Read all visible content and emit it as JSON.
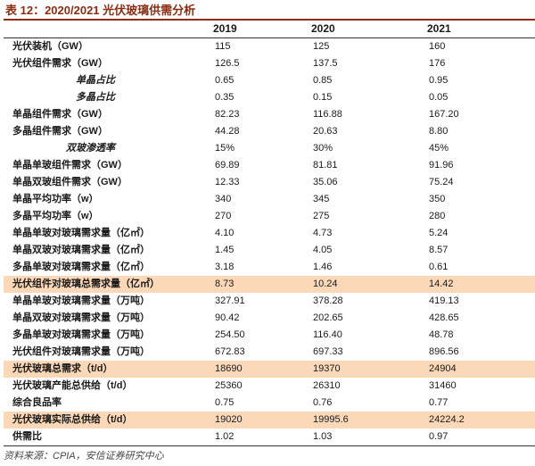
{
  "title": "表 12：2020/2021 光伏玻璃供需分析",
  "columns": [
    "",
    "2019",
    "2020",
    "2021"
  ],
  "rows": [
    {
      "label": "光伏装机（GW）",
      "values": [
        "115",
        "125",
        "160"
      ],
      "type": "main"
    },
    {
      "label": "光伏组件需求（GW）",
      "values": [
        "126.5",
        "137.5",
        "176"
      ],
      "type": "main"
    },
    {
      "label": "单晶占比",
      "values": [
        "0.65",
        "0.85",
        "0.95"
      ],
      "type": "sub"
    },
    {
      "label": "多晶占比",
      "values": [
        "0.35",
        "0.15",
        "0.05"
      ],
      "type": "sub"
    },
    {
      "label": "单晶组件需求（GW）",
      "values": [
        "82.23",
        "116.88",
        "167.20"
      ],
      "type": "main"
    },
    {
      "label": "多晶组件需求（GW）",
      "values": [
        "44.28",
        "20.63",
        "8.80"
      ],
      "type": "main"
    },
    {
      "label": "双玻渗透率",
      "values": [
        "15%",
        "30%",
        "45%"
      ],
      "type": "sub"
    },
    {
      "label": "单晶单玻组件需求（GW）",
      "values": [
        "69.89",
        "81.81",
        "91.96"
      ],
      "type": "main"
    },
    {
      "label": "单晶双玻组件需求（GW）",
      "values": [
        "12.33",
        "35.06",
        "75.24"
      ],
      "type": "main"
    },
    {
      "label": "单晶平均功率（w）",
      "values": [
        "340",
        "345",
        "350"
      ],
      "type": "main"
    },
    {
      "label": "多晶平均功率（w）",
      "values": [
        "270",
        "275",
        "280"
      ],
      "type": "main"
    },
    {
      "label": "单晶单玻对玻璃需求量（亿㎡）",
      "values": [
        "4.10",
        "4.73",
        "5.24"
      ],
      "type": "main"
    },
    {
      "label": "单晶双玻对玻璃需求量（亿㎡）",
      "values": [
        "1.45",
        "4.05",
        "8.57"
      ],
      "type": "main"
    },
    {
      "label": "多晶单玻对玻璃需求量（亿㎡）",
      "values": [
        "3.18",
        "1.46",
        "0.61"
      ],
      "type": "main"
    },
    {
      "label": "光伏组件对玻璃总需求量（亿㎡）",
      "values": [
        "8.73",
        "10.24",
        "14.42"
      ],
      "type": "highlight"
    },
    {
      "label": "单晶单玻对玻璃需求量（万吨）",
      "values": [
        "327.91",
        "378.28",
        "419.13"
      ],
      "type": "main"
    },
    {
      "label": "单晶双玻对玻璃需求量（万吨）",
      "values": [
        "90.42",
        "202.65",
        "428.65"
      ],
      "type": "main"
    },
    {
      "label": "多晶单玻对玻璃需求量（万吨）",
      "values": [
        "254.50",
        "116.40",
        "48.78"
      ],
      "type": "main"
    },
    {
      "label": "光伏组件对玻璃需求量（万吨）",
      "values": [
        "672.83",
        "697.33",
        "896.56"
      ],
      "type": "main"
    },
    {
      "label": "光伏玻璃总需求（t/d）",
      "values": [
        "18690",
        "19370",
        "24904"
      ],
      "type": "highlight"
    },
    {
      "label": "光伏玻璃产能总供给（t/d）",
      "values": [
        "25360",
        "26310",
        "31460"
      ],
      "type": "main"
    },
    {
      "label": "综合良品率",
      "values": [
        "0.75",
        "0.76",
        "0.77"
      ],
      "type": "main"
    },
    {
      "label": "光伏玻璃实际总供给（t/d）",
      "values": [
        "19020",
        "19995.6",
        "24224.2"
      ],
      "type": "highlight"
    },
    {
      "label": "供需比",
      "values": [
        "1.02",
        "1.03",
        "0.97"
      ],
      "type": "main"
    }
  ],
  "source": "资料来源：CPIA，安信证券研究中心",
  "colors": {
    "title": "#8a2d12",
    "highlight_row": "#fbd8b7"
  }
}
